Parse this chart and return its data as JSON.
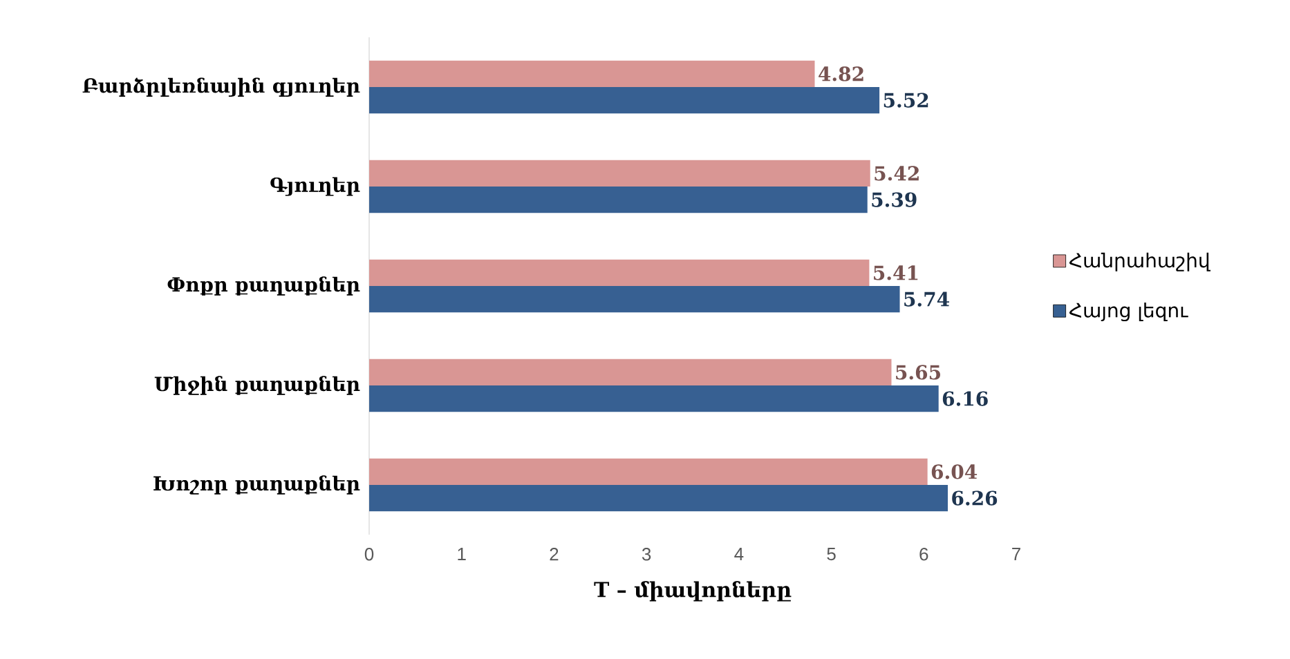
{
  "chart_data": {
    "type": "bar",
    "orientation": "horizontal",
    "categories": [
      "Բարձրլեռնային գյուղեր",
      "Գյուղեր",
      "Փոքր քաղաքներ",
      "Միջին քաղաքներ",
      "Խոշոր քաղաքներ"
    ],
    "series": [
      {
        "name": "Հանրահաշիվ",
        "color": "#d99694",
        "values": [
          4.82,
          5.42,
          5.41,
          5.65,
          6.04
        ]
      },
      {
        "name": "Հայոց լեզու",
        "color": "#376092",
        "values": [
          5.52,
          5.39,
          5.74,
          6.16,
          6.26
        ]
      }
    ],
    "xlabel": "T – միավորները",
    "xlim": [
      0,
      7
    ],
    "xticks": [
      0,
      1,
      2,
      3,
      4,
      5,
      6,
      7
    ],
    "data_labels": true,
    "legend": "right"
  }
}
